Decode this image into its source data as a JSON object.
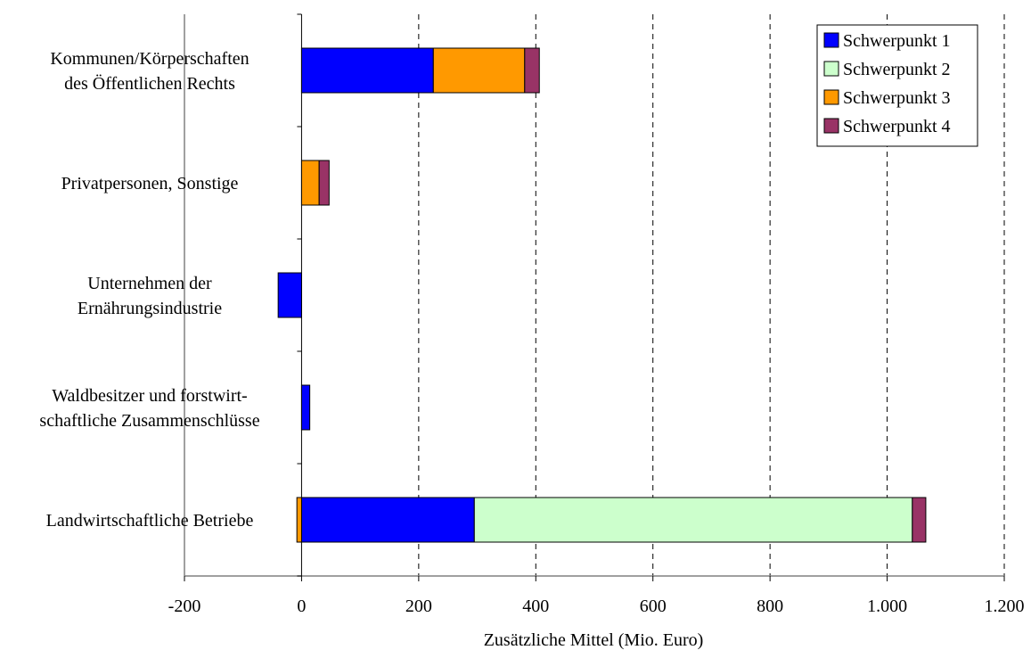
{
  "chart_data": {
    "type": "bar",
    "orientation": "horizontal",
    "stacked": true,
    "categories": [
      [
        "Kommunen/Körperschaften",
        "des Öffentlichen Rechts"
      ],
      [
        "Privatpersonen, Sonstige"
      ],
      [
        "Unternehmen der",
        "Ernährungsindustrie"
      ],
      [
        "Waldbesitzer und forstwirt-",
        "schaftliche Zusammenschlüsse"
      ],
      [
        "Landwirtschaftliche Betriebe"
      ]
    ],
    "series": [
      {
        "name": "Schwerpunkt 1",
        "color": "#0000ff",
        "values": [
          225,
          0,
          -40,
          14,
          295
        ]
      },
      {
        "name": "Schwerpunkt 2",
        "color": "#ccffcc",
        "values": [
          0,
          0,
          0,
          0,
          748
        ]
      },
      {
        "name": "Schwerpunkt 3",
        "color": "#ff9900",
        "values": [
          156,
          30,
          0,
          0,
          -8
        ]
      },
      {
        "name": "Schwerpunkt 4",
        "color": "#993366",
        "values": [
          25,
          17,
          0,
          0,
          23
        ]
      }
    ],
    "xlabel": "Zusätzliche Mittel (Mio. Euro)",
    "xlim": [
      -200,
      1200
    ],
    "xticks": [
      -200,
      0,
      200,
      400,
      600,
      800,
      1000,
      1200
    ],
    "xtick_labels": [
      "-200",
      "0",
      "200",
      "400",
      "600",
      "800",
      "1.000",
      "1.200"
    ],
    "grid": "vertical-dashed",
    "legend_position": "top-right"
  }
}
